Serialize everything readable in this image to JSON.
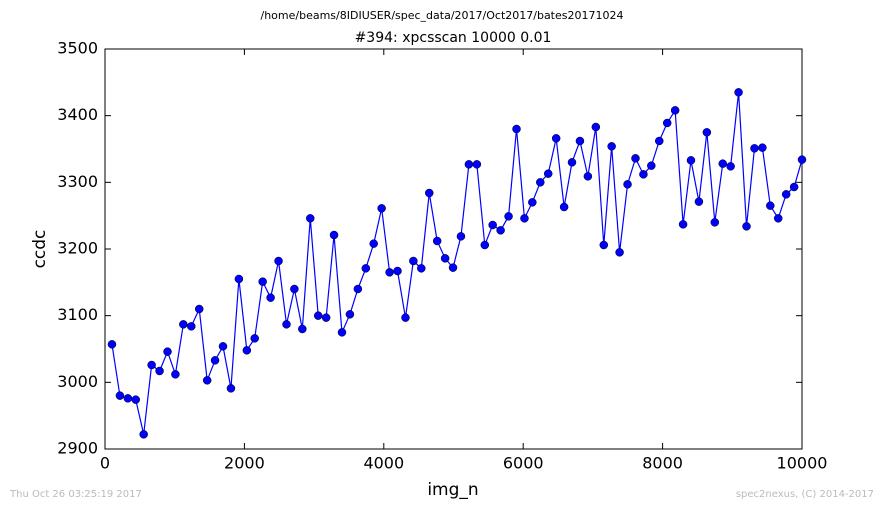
{
  "chart_data": {
    "type": "line",
    "title": "/home/beams/8IDIUSER/spec_data/2017/Oct2017/bates20171024",
    "subtitle": "#394: xpcsscan 10000 0.01",
    "x_label": "img_n",
    "y_label": "ccdc",
    "footer_left": "Thu Oct 26 03:25:19 2017",
    "footer_right": "spec2nexus, (C) 2014-2017",
    "x": [
      100,
      214,
      328,
      441,
      555,
      669,
      783,
      897,
      1010,
      1124,
      1238,
      1352,
      1466,
      1579,
      1693,
      1807,
      1921,
      2035,
      2148,
      2262,
      2376,
      2490,
      2604,
      2717,
      2831,
      2945,
      3059,
      3173,
      3286,
      3400,
      3514,
      3628,
      3742,
      3855,
      3969,
      4083,
      4197,
      4311,
      4424,
      4538,
      4652,
      4766,
      4880,
      4993,
      5107,
      5221,
      5335,
      5449,
      5562,
      5676,
      5790,
      5904,
      6018,
      6131,
      6245,
      6359,
      6473,
      6587,
      6700,
      6814,
      6928,
      7042,
      7156,
      7269,
      7383,
      7497,
      7611,
      7725,
      7838,
      7952,
      8066,
      8180,
      8294,
      8407,
      8521,
      8635,
      8749,
      8863,
      8976,
      9090,
      9204,
      9318,
      9432,
      9545,
      9659,
      9773,
      9887,
      10000
    ],
    "series": [
      {
        "name": "ccdc",
        "color": "#0000ff",
        "values": [
          3057,
          2980,
          2976,
          2974,
          2922,
          3026,
          3017,
          3046,
          3012,
          3087,
          3084,
          3110,
          3003,
          3033,
          3054,
          2991,
          3155,
          3048,
          3066,
          3151,
          3127,
          3182,
          3087,
          3140,
          3080,
          3246,
          3100,
          3097,
          3221,
          3075,
          3102,
          3140,
          3171,
          3208,
          3261,
          3165,
          3167,
          3097,
          3182,
          3171,
          3284,
          3212,
          3186,
          3172,
          3219,
          3327,
          3327,
          3206,
          3236,
          3228,
          3249,
          3380,
          3246,
          3270,
          3300,
          3313,
          3366,
          3263,
          3330,
          3362,
          3309,
          3383,
          3206,
          3354,
          3195,
          3297,
          3336,
          3312,
          3325,
          3362,
          3389,
          3408,
          3237,
          3333,
          3271,
          3375,
          3240,
          3328,
          3324,
          3435,
          3234,
          3351,
          3352,
          3265,
          3246,
          3282,
          3293,
          3334
        ]
      }
    ],
    "xlim": [
      0,
      10000
    ],
    "xticks": [
      0,
      2000,
      4000,
      6000,
      8000,
      10000
    ],
    "ylim": [
      2900,
      3500
    ],
    "yticks": [
      2900,
      3000,
      3100,
      3200,
      3300,
      3400,
      3500
    ],
    "grid": false
  }
}
